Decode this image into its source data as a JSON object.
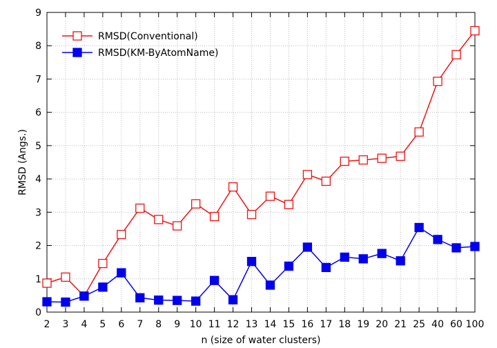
{
  "chart_data": {
    "type": "line",
    "title": "",
    "xlabel": "n (size of water clusters)",
    "ylabel": "RMSD (Angs.)",
    "ylim": [
      0,
      9
    ],
    "yticks": [
      0,
      1,
      2,
      3,
      4,
      5,
      6,
      7,
      8,
      9
    ],
    "categories": [
      "2",
      "3",
      "4",
      "5",
      "6",
      "7",
      "8",
      "9",
      "10",
      "11",
      "12",
      "13",
      "14",
      "15",
      "16",
      "17",
      "18",
      "19",
      "20",
      "21",
      "25",
      "40",
      "60",
      "100"
    ],
    "grid": true,
    "legend_position": "top-left",
    "series": [
      {
        "name": "RMSD(Conventional)",
        "color": "#ee1111",
        "marker": "open-square",
        "values": [
          0.87,
          1.05,
          0.48,
          1.46,
          2.33,
          3.12,
          2.78,
          2.59,
          3.25,
          2.87,
          3.76,
          2.93,
          3.48,
          3.23,
          4.13,
          3.93,
          4.53,
          4.57,
          4.62,
          4.68,
          5.41,
          6.93,
          7.73,
          8.45
        ]
      },
      {
        "name": "RMSD(KM-ByAtomName)",
        "color": "#0000ee",
        "marker": "filled-square",
        "values": [
          0.31,
          0.3,
          0.48,
          0.75,
          1.18,
          0.43,
          0.36,
          0.35,
          0.33,
          0.95,
          0.37,
          1.52,
          0.81,
          1.38,
          1.95,
          1.34,
          1.65,
          1.6,
          1.76,
          1.54,
          2.54,
          2.18,
          1.93,
          1.97
        ]
      }
    ]
  }
}
